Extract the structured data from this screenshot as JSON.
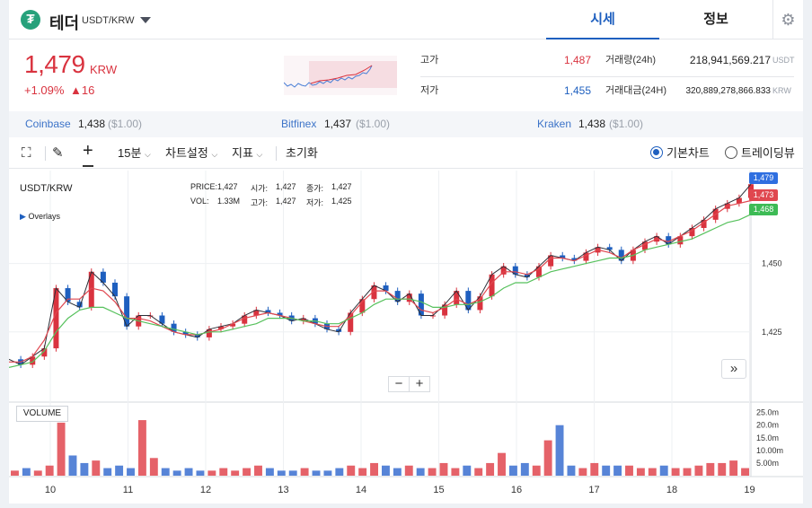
{
  "header": {
    "logo_glyph": "₮",
    "coin_name": "테더",
    "pair": "USDT/KRW",
    "tabs": [
      {
        "label": "시세",
        "active": true
      },
      {
        "label": "정보",
        "active": false
      }
    ]
  },
  "price": {
    "current": "1,479",
    "unit": "KRW",
    "change_rate": "+1.09%",
    "change_amount": "▲16",
    "color": "#d9333f"
  },
  "stats": {
    "high_label": "고가",
    "high_value": "1,487",
    "low_label": "저가",
    "low_value": "1,455",
    "volume_label": "거래량(24h)",
    "volume_value": "218,941,569.217",
    "volume_unit": "USDT",
    "amount_label": "거래대금(24H)",
    "amount_value": "320,889,278,866.833",
    "amount_unit": "KRW"
  },
  "exchanges": [
    {
      "name": "Coinbase",
      "price": "1,438",
      "usd": "($1.00)"
    },
    {
      "name": "Bitfinex",
      "price": "1,437",
      "usd": "($1.00)"
    },
    {
      "name": "Kraken",
      "price": "1,438",
      "usd": "($1.00)"
    }
  ],
  "toolbar": {
    "interval": "15분",
    "chart_settings": "차트설정",
    "indicators": "지표",
    "reset": "초기화",
    "basic_chart": "기본차트",
    "tradingview": "트레이딩뷰",
    "selected": "기본차트"
  },
  "chart_legend": {
    "symbol": "USDT/KRW",
    "overlays": "Overlays",
    "price_label": "PRICE:",
    "price": "1,427",
    "open_label": "시가:",
    "open": "1,427",
    "close_label": "종가:",
    "close": "1,427",
    "vol_label": "VOL:",
    "vol": "1.33M",
    "high_label": "고가:",
    "high": "1,427",
    "low_label": "저가:",
    "low": "1,425"
  },
  "chart_data": {
    "type": "line",
    "x_ticks": [
      "10",
      "11",
      "12",
      "13",
      "14",
      "15",
      "16",
      "17",
      "18",
      "19"
    ],
    "y_ticks": [
      1425,
      1450
    ],
    "badges": {
      "last": "1,479",
      "ma_short": "1,473",
      "ma_long": "1,468"
    },
    "volume_label": "VOLUME",
    "volume_ticks": [
      "25.0m",
      "20.0m",
      "15.0m",
      "10.00m",
      "5.00m"
    ],
    "series": [
      {
        "values": [
          1415,
          1413,
          1416,
          1419,
          1441,
          1436,
          1434,
          1447,
          1443,
          1438,
          1427,
          1431,
          1431,
          1428,
          1425,
          1424,
          1423,
          1426,
          1427,
          1428,
          1431,
          1433,
          1432,
          1431,
          1429,
          1430,
          1428,
          1426,
          1425,
          1432,
          1437,
          1442,
          1440,
          1436,
          1439,
          1431,
          1431,
          1435,
          1440,
          1433,
          1438,
          1446,
          1449,
          1446,
          1445,
          1449,
          1453,
          1452,
          1451,
          1454,
          1456,
          1455,
          1451,
          1455,
          1458,
          1460,
          1457,
          1460,
          1463,
          1466,
          1470,
          1472,
          1474,
          1479
        ]
      },
      {
        "values": [
          1414,
          1414,
          1416,
          1422,
          1432,
          1437,
          1437,
          1441,
          1440,
          1436,
          1430,
          1430,
          1429,
          1427,
          1425,
          1424,
          1424,
          1425,
          1426,
          1428,
          1430,
          1431,
          1432,
          1431,
          1430,
          1429,
          1428,
          1427,
          1427,
          1431,
          1436,
          1440,
          1440,
          1437,
          1437,
          1433,
          1432,
          1434,
          1437,
          1435,
          1437,
          1443,
          1447,
          1447,
          1446,
          1448,
          1452,
          1452,
          1451,
          1453,
          1455,
          1454,
          1452,
          1455,
          1457,
          1459,
          1458,
          1460,
          1462,
          1465,
          1468,
          1471,
          1472,
          1473
        ]
      },
      {
        "values": [
          1412,
          1413,
          1414,
          1418,
          1425,
          1430,
          1433,
          1434,
          1434,
          1432,
          1430,
          1429,
          1428,
          1427,
          1426,
          1425,
          1424,
          1425,
          1425,
          1426,
          1427,
          1428,
          1430,
          1430,
          1430,
          1429,
          1429,
          1428,
          1428,
          1430,
          1432,
          1435,
          1437,
          1437,
          1437,
          1436,
          1434,
          1434,
          1435,
          1435,
          1436,
          1438,
          1441,
          1443,
          1443,
          1445,
          1447,
          1448,
          1449,
          1450,
          1451,
          1452,
          1452,
          1453,
          1455,
          1456,
          1457,
          1458,
          1459,
          1461,
          1463,
          1465,
          1466,
          1468
        ]
      }
    ],
    "volume": [
      2,
      3,
      2,
      4,
      21,
      8,
      5,
      6,
      3,
      4,
      3,
      22,
      7,
      3,
      2,
      3,
      2,
      2,
      3,
      2,
      3,
      4,
      3,
      2,
      2,
      3,
      2,
      2,
      3,
      4,
      3,
      5,
      4,
      3,
      4,
      3,
      3,
      5,
      3,
      4,
      3,
      5,
      9,
      4,
      5,
      4,
      14,
      20,
      4,
      3,
      5,
      4,
      4,
      4,
      3,
      3,
      4,
      3,
      3,
      4,
      5,
      5,
      6,
      3
    ]
  }
}
